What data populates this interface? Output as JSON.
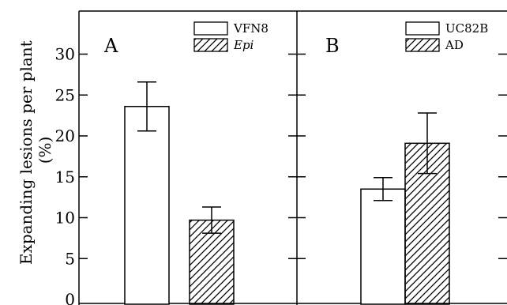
{
  "chart_data": [
    {
      "type": "bar",
      "panel": "A",
      "ylabel": "Expanding lesions per plant (%)",
      "ylabel_lines": [
        "Expanding lesions per plant",
        "(%)"
      ],
      "ylim": [
        0,
        35
      ],
      "yticks": [
        0,
        5,
        10,
        15,
        20,
        25,
        30
      ],
      "grid": false,
      "legend_position": "top-right",
      "series": [
        {
          "name": "VFN8",
          "italic": false,
          "fill": "open",
          "value": 23.6,
          "error": 3.0
        },
        {
          "name": "Epi",
          "italic": true,
          "fill": "hatched",
          "value": 9.7,
          "error": 1.6
        }
      ]
    },
    {
      "type": "bar",
      "panel": "B",
      "ylim": [
        0,
        35
      ],
      "yticks": [
        0,
        5,
        10,
        15,
        20,
        25,
        30
      ],
      "grid": false,
      "legend_position": "top-right",
      "series": [
        {
          "name": "UC82B",
          "italic": false,
          "fill": "open",
          "value": 13.5,
          "error": 1.4
        },
        {
          "name": "AD",
          "italic": false,
          "fill": "hatched",
          "value": 19.1,
          "error": 3.7
        }
      ]
    }
  ]
}
